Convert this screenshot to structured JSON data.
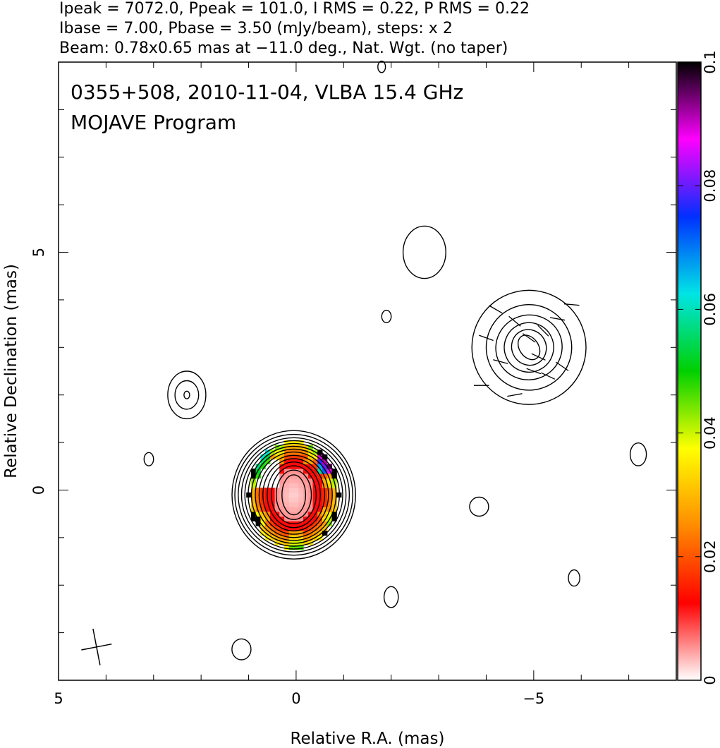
{
  "chart_data": {
    "type": "heatmap",
    "header_lines": [
      "Ipeak = 7072.0, Ppeak = 101.0, I RMS = 0.22, P RMS = 0.22",
      "Ibase = 7.00, Pbase = 3.50 (mJy/beam), steps: x 2",
      "Beam: 0.78x0.65 mas at −11.0 deg., Nat. Wgt. (no taper)"
    ],
    "title": "0355+508, 2010-11-04, VLBA 15.4 GHz",
    "subtitle": "MOJAVE Program",
    "xlabel": "Relative R.A. (mas)",
    "ylabel": "Relative Declination (mas)",
    "xlim": [
      5,
      -8
    ],
    "ylim": [
      -4,
      9
    ],
    "x_ticks": [
      5,
      0,
      -5
    ],
    "x_tick_labels": [
      "5",
      "0",
      "−5"
    ],
    "y_ticks": [
      0,
      5
    ],
    "y_tick_labels": [
      "0",
      "5"
    ],
    "colorbar": {
      "range": [
        0,
        0.1
      ],
      "ticks": [
        0,
        0.02,
        0.04,
        0.06,
        0.08,
        0.1
      ],
      "tick_labels": [
        "0",
        "0.02",
        "0.04",
        "0.06",
        "0.08",
        "0.1"
      ],
      "colors": [
        "#ffffff",
        "#ff0000",
        "#ff8c00",
        "#ffff00",
        "#00d000",
        "#00e5e5",
        "#0030ff",
        "#ff00ff",
        "#000000"
      ]
    },
    "core_contours": {
      "center": [
        0.05,
        -0.1
      ],
      "radii": [
        [
          0.25,
          0.42
        ],
        [
          0.37,
          0.52
        ],
        [
          0.47,
          0.61
        ],
        [
          0.56,
          0.69
        ],
        [
          0.65,
          0.76
        ],
        [
          0.73,
          0.83
        ],
        [
          0.81,
          0.9
        ],
        [
          0.89,
          0.96
        ],
        [
          0.96,
          1.02
        ],
        [
          1.03,
          1.08
        ],
        [
          1.1,
          1.14
        ],
        [
          1.17,
          1.2
        ],
        [
          1.24,
          1.27
        ],
        [
          1.3,
          1.35
        ]
      ]
    },
    "jet_contours": {
      "center": [
        -4.9,
        3.0
      ],
      "radii": [
        [
          0.2,
          0.28
        ],
        [
          0.36,
          0.38
        ],
        [
          0.52,
          0.52
        ],
        [
          0.7,
          0.68
        ],
        [
          0.9,
          0.9
        ],
        [
          1.2,
          1.2
        ]
      ]
    },
    "isolated_contours": [
      {
        "x": 2.3,
        "y": 2.0,
        "rx": 0.4,
        "ry": 0.5
      },
      {
        "x": 2.3,
        "y": 2.0,
        "rx": 0.25,
        "ry": 0.3
      },
      {
        "x": 2.3,
        "y": 2.0,
        "rx": 0.06,
        "ry": 0.08
      },
      {
        "x": 3.1,
        "y": 0.65,
        "rx": 0.1,
        "ry": 0.14
      },
      {
        "x": -1.8,
        "y": 8.9,
        "rx": 0.08,
        "ry": 0.12
      },
      {
        "x": -2.7,
        "y": 5.0,
        "rx": 0.45,
        "ry": 0.55
      },
      {
        "x": -1.9,
        "y": 3.65,
        "rx": 0.1,
        "ry": 0.13
      },
      {
        "x": -3.85,
        "y": -0.35,
        "rx": 0.2,
        "ry": 0.2
      },
      {
        "x": -7.2,
        "y": 0.75,
        "rx": 0.17,
        "ry": 0.24
      },
      {
        "x": -5.85,
        "y": -1.85,
        "rx": 0.12,
        "ry": 0.17
      },
      {
        "x": -2.0,
        "y": -2.25,
        "rx": 0.15,
        "ry": 0.22
      },
      {
        "x": 1.15,
        "y": -3.35,
        "rx": 0.2,
        "ry": 0.22
      }
    ],
    "pol_pixels_approx": [
      {
        "x": 0.0,
        "y": -0.1,
        "r": 0.5,
        "v": 0.004
      },
      {
        "x": 0.15,
        "y": 0.4,
        "r": 0.35,
        "v": 0.012
      },
      {
        "x": -0.2,
        "y": -0.6,
        "r": 0.35,
        "v": 0.01
      },
      {
        "x": 0.8,
        "y": 0.3,
        "r": 0.18,
        "v": 0.035
      },
      {
        "x": 0.55,
        "y": 0.65,
        "r": 0.2,
        "v": 0.045
      },
      {
        "x": -0.65,
        "y": 0.5,
        "r": 0.15,
        "v": 0.025
      },
      {
        "x": -0.8,
        "y": 0.6,
        "r": 0.1,
        "v": 0.055
      },
      {
        "x": 0.95,
        "y": -0.8,
        "r": 0.1,
        "v": 0.07
      },
      {
        "x": -0.6,
        "y": 0.95,
        "r": 0.08,
        "v": 0.1
      },
      {
        "x": 1.0,
        "y": -1.05,
        "r": 0.08,
        "v": 0.1
      }
    ],
    "evpa_ticks_approx": [
      {
        "x": -4.2,
        "y": 3.8,
        "angle_deg": 30
      },
      {
        "x": -4.6,
        "y": 3.55,
        "angle_deg": 40
      },
      {
        "x": -4.9,
        "y": 3.2,
        "angle_deg": 35
      },
      {
        "x": -5.1,
        "y": 2.8,
        "angle_deg": 25
      },
      {
        "x": -4.3,
        "y": 2.7,
        "angle_deg": 15
      },
      {
        "x": -4.0,
        "y": 3.2,
        "angle_deg": 20
      },
      {
        "x": -5.5,
        "y": 3.6,
        "angle_deg": 10
      },
      {
        "x": -5.8,
        "y": 3.9,
        "angle_deg": 5
      },
      {
        "x": -3.9,
        "y": 2.2,
        "angle_deg": 0
      },
      {
        "x": -4.6,
        "y": 2.0,
        "angle_deg": -10
      },
      {
        "x": -5.3,
        "y": 2.4,
        "angle_deg": 25
      },
      {
        "x": -5.6,
        "y": 2.6,
        "angle_deg": 35
      },
      {
        "x": -5.2,
        "y": 3.35,
        "angle_deg": 45
      },
      {
        "x": -5.0,
        "y": 2.5,
        "angle_deg": 20
      }
    ],
    "beam": {
      "x": 4.2,
      "y": -3.3,
      "major_mas": 0.78,
      "minor_mas": 0.65,
      "pa_deg": -11.0
    }
  }
}
